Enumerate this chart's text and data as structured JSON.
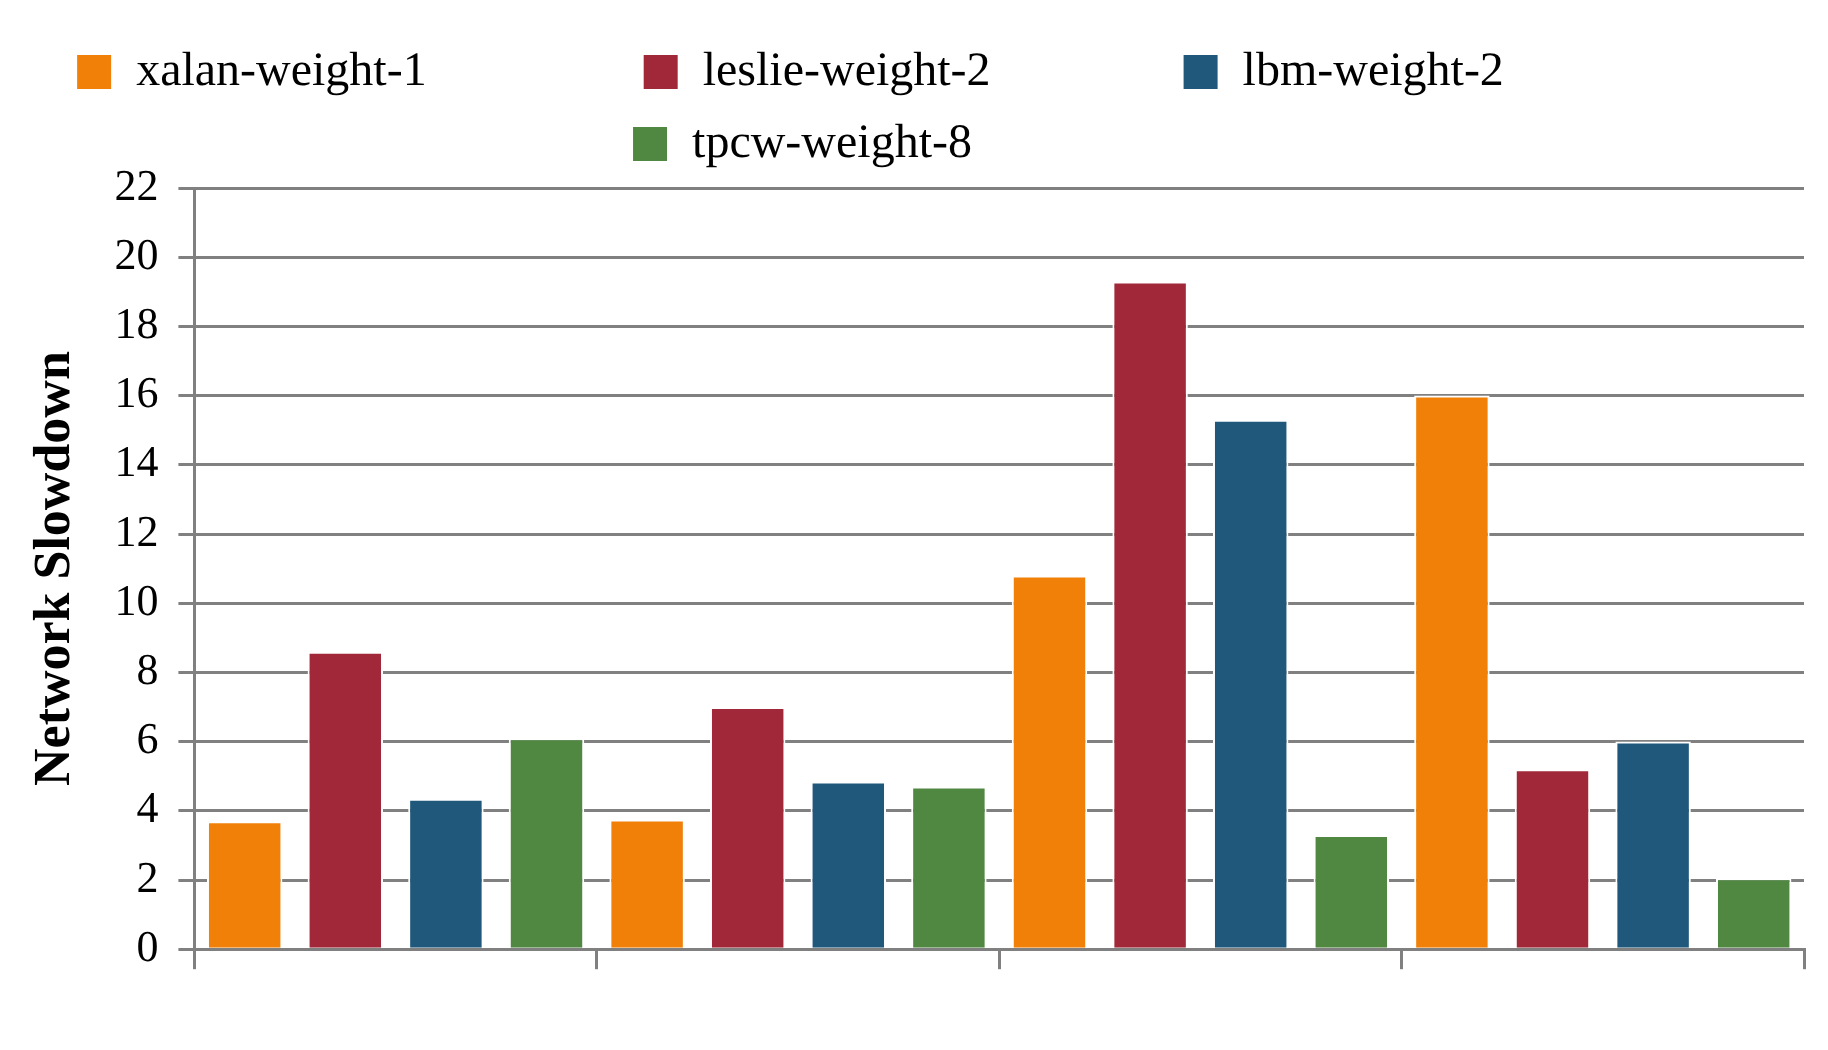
{
  "chart_data": {
    "type": "bar",
    "ylabel": "Network Slowdown",
    "categories": [
      null,
      null,
      null,
      null
    ],
    "series": [
      {
        "name": "xalan-weight-1",
        "color": "#f08008",
        "values": [
          3.7,
          3.75,
          10.8,
          16.0
        ]
      },
      {
        "name": "leslie-weight-2",
        "color": "#a02838",
        "values": [
          8.6,
          7.0,
          19.3,
          5.2
        ]
      },
      {
        "name": "lbm-weight-2",
        "color": "#1f587a",
        "values": [
          4.35,
          4.85,
          15.3,
          6.0
        ]
      },
      {
        "name": "tpcw-weight-8",
        "color": "#508842",
        "values": [
          6.1,
          4.7,
          3.3,
          2.05
        ]
      }
    ],
    "ylim": [
      0,
      22
    ],
    "yticks": [
      0,
      2,
      4,
      6,
      8,
      10,
      12,
      14,
      16,
      18,
      20,
      22
    ],
    "grid": "y",
    "legend": "top"
  }
}
